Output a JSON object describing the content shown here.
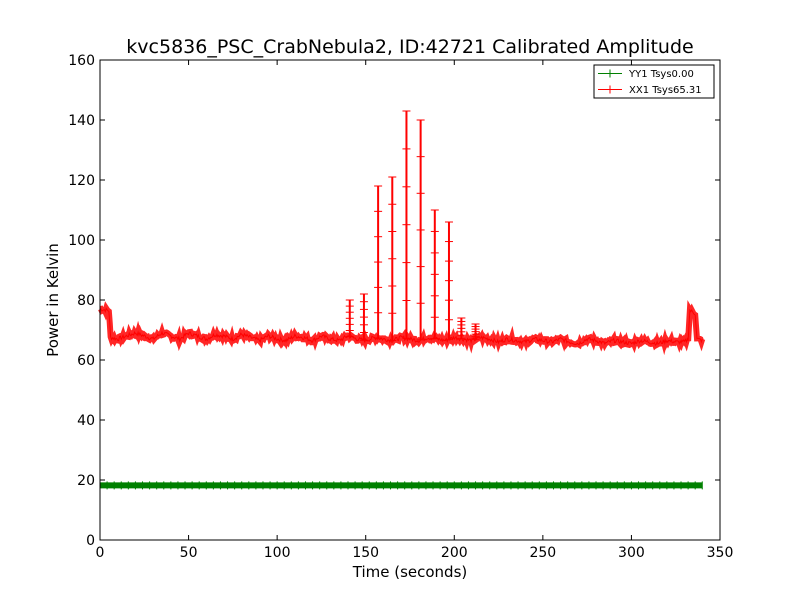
{
  "chart_data": {
    "type": "line",
    "title": "kvc5836_PSC_CrabNebula2, ID:42721 Calibrated Amplitude",
    "xlabel": "Time (seconds)",
    "ylabel": "Power in Kelvin",
    "xlim": [
      0,
      350
    ],
    "ylim": [
      0,
      160
    ],
    "xticks": [
      0,
      50,
      100,
      150,
      200,
      250,
      300,
      350
    ],
    "yticks": [
      0,
      20,
      40,
      60,
      80,
      100,
      120,
      140,
      160
    ],
    "grid": false,
    "legend_position": "top-right",
    "series": [
      {
        "name": "YY1 Tsys0.00",
        "color": "#008000",
        "marker": "+",
        "x_range": [
          0,
          340
        ],
        "level": 18.2
      },
      {
        "name": "XX1 Tsys65.31",
        "color": "#ff0000",
        "marker": "+",
        "x_range": [
          0,
          340
        ],
        "baseline": [
          [
            0,
            77
          ],
          [
            5,
            76.5
          ],
          [
            6,
            67.5
          ],
          [
            10,
            67
          ],
          [
            15,
            68
          ],
          [
            20,
            69
          ],
          [
            25,
            68
          ],
          [
            30,
            67
          ],
          [
            35,
            69
          ],
          [
            40,
            68
          ],
          [
            45,
            67
          ],
          [
            50,
            69
          ],
          [
            55,
            68
          ],
          [
            60,
            67
          ],
          [
            65,
            68.5
          ],
          [
            70,
            68
          ],
          [
            75,
            67
          ],
          [
            80,
            68.5
          ],
          [
            85,
            67.5
          ],
          [
            90,
            66.5
          ],
          [
            95,
            68
          ],
          [
            100,
            67
          ],
          [
            105,
            66.5
          ],
          [
            110,
            68
          ],
          [
            115,
            67.5
          ],
          [
            120,
            66.5
          ],
          [
            125,
            68
          ],
          [
            130,
            67
          ],
          [
            135,
            66.5
          ],
          [
            140,
            68
          ],
          [
            145,
            67
          ],
          [
            150,
            66.5
          ],
          [
            155,
            67.5
          ],
          [
            160,
            67
          ],
          [
            165,
            66.5
          ],
          [
            170,
            67.5
          ],
          [
            175,
            67
          ],
          [
            180,
            66.5
          ],
          [
            185,
            67.5
          ],
          [
            190,
            67
          ],
          [
            195,
            66.5
          ],
          [
            200,
            67.5
          ],
          [
            205,
            67
          ],
          [
            210,
            66.5
          ],
          [
            215,
            67.5
          ],
          [
            220,
            67
          ],
          [
            225,
            66
          ],
          [
            230,
            67
          ],
          [
            235,
            66.5
          ],
          [
            240,
            66
          ],
          [
            245,
            67
          ],
          [
            250,
            66.5
          ],
          [
            255,
            66
          ],
          [
            260,
            67
          ],
          [
            265,
            66
          ],
          [
            270,
            65.5
          ],
          [
            275,
            67
          ],
          [
            280,
            66.5
          ],
          [
            285,
            65.5
          ],
          [
            290,
            66.5
          ],
          [
            295,
            66
          ],
          [
            300,
            65.5
          ],
          [
            305,
            66.5
          ],
          [
            310,
            66
          ],
          [
            315,
            65.5
          ],
          [
            320,
            66.5
          ],
          [
            325,
            66
          ],
          [
            330,
            66
          ],
          [
            332,
            67
          ],
          [
            333,
            76.5
          ],
          [
            336,
            75.5
          ],
          [
            337,
            67
          ],
          [
            340,
            66.5
          ]
        ],
        "spikes": [
          {
            "x": 141,
            "peak": 80
          },
          {
            "x": 149,
            "peak": 82
          },
          {
            "x": 157,
            "peak": 118
          },
          {
            "x": 165,
            "peak": 121
          },
          {
            "x": 173,
            "peak": 143
          },
          {
            "x": 181,
            "peak": 140
          },
          {
            "x": 189,
            "peak": 110
          },
          {
            "x": 197,
            "peak": 106
          },
          {
            "x": 204,
            "peak": 74
          },
          {
            "x": 212,
            "peak": 72
          }
        ]
      }
    ]
  }
}
